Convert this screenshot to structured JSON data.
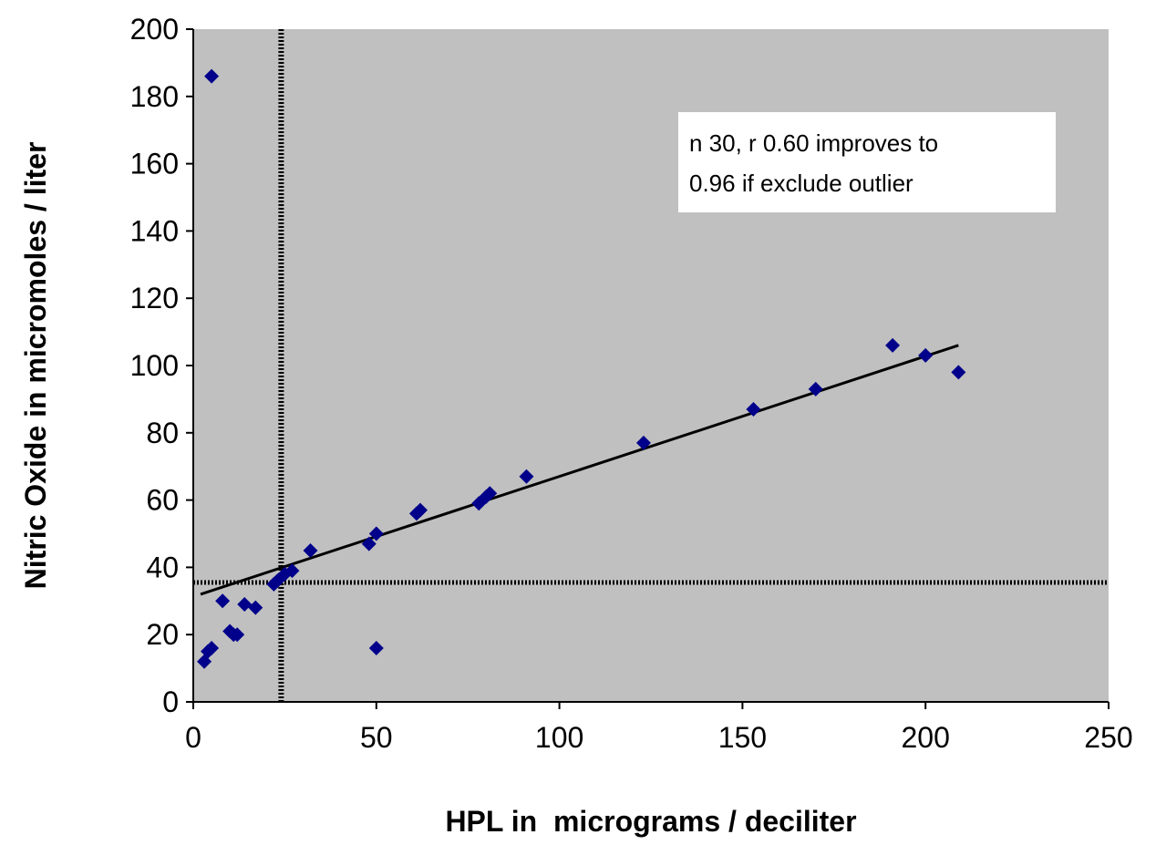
{
  "chart_data": {
    "type": "scatter",
    "title": "",
    "xlabel": "HPL in  micrograms / deciliter",
    "ylabel": "Nitric Oxide in micromoles / liter",
    "xlim": [
      0,
      250
    ],
    "ylim": [
      0,
      200
    ],
    "xticks": [
      0,
      50,
      100,
      150,
      200,
      250
    ],
    "yticks": [
      0,
      20,
      40,
      60,
      80,
      100,
      120,
      140,
      160,
      180,
      200
    ],
    "grid": false,
    "background_color": "#c0c0c0",
    "marker_color": "#00008b",
    "points": [
      {
        "x": 3,
        "y": 12
      },
      {
        "x": 4,
        "y": 15
      },
      {
        "x": 5,
        "y": 16
      },
      {
        "x": 5,
        "y": 186
      },
      {
        "x": 8,
        "y": 30
      },
      {
        "x": 10,
        "y": 21
      },
      {
        "x": 11,
        "y": 20
      },
      {
        "x": 12,
        "y": 20
      },
      {
        "x": 14,
        "y": 29
      },
      {
        "x": 17,
        "y": 28
      },
      {
        "x": 22,
        "y": 35
      },
      {
        "x": 23,
        "y": 36
      },
      {
        "x": 25,
        "y": 38
      },
      {
        "x": 27,
        "y": 39
      },
      {
        "x": 32,
        "y": 45
      },
      {
        "x": 48,
        "y": 47
      },
      {
        "x": 50,
        "y": 16
      },
      {
        "x": 50,
        "y": 50
      },
      {
        "x": 61,
        "y": 56
      },
      {
        "x": 62,
        "y": 57
      },
      {
        "x": 78,
        "y": 59
      },
      {
        "x": 80,
        "y": 61
      },
      {
        "x": 81,
        "y": 62
      },
      {
        "x": 91,
        "y": 67
      },
      {
        "x": 123,
        "y": 77
      },
      {
        "x": 153,
        "y": 87
      },
      {
        "x": 170,
        "y": 93
      },
      {
        "x": 191,
        "y": 106
      },
      {
        "x": 200,
        "y": 103
      },
      {
        "x": 209,
        "y": 98
      }
    ],
    "trendline": {
      "x1": 2,
      "y1": 32,
      "x2": 209,
      "y2": 106
    },
    "vertical_reference_x": 24,
    "horizontal_reference_y": 35.5,
    "annotation": {
      "lines": [
        "n 30, r 0.60 improves to",
        "0.96 if exclude outlier"
      ],
      "position": "top-right"
    }
  }
}
